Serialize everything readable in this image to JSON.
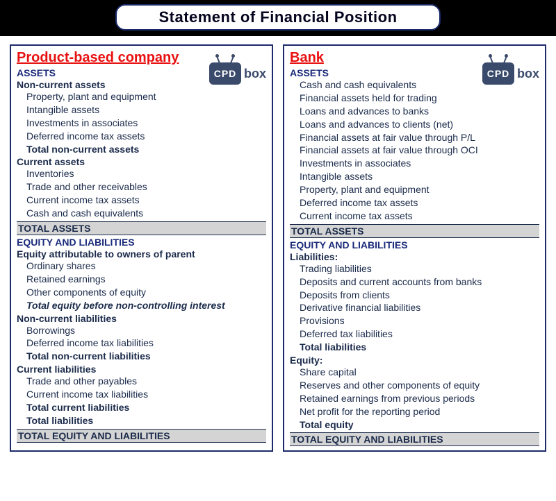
{
  "title": "Statement of Financial Position",
  "colors": {
    "title_border": "#1a2a6a",
    "panel_border": "#1a2a6a",
    "heading_red": "#e81010",
    "section_blue": "#1a2a7a",
    "text": "#1a2a4a",
    "total_bg": "#d4d4d4",
    "black_bar": "#000000",
    "white": "#ffffff",
    "logo": "#3a4a6a"
  },
  "logo": {
    "left": "CPD",
    "right": "box"
  },
  "left": {
    "title": "Product-based company",
    "assets_header": "ASSETS",
    "nca_header": "Non-current assets",
    "nca_items": [
      "Property, plant and equipment",
      "Intangible assets",
      "Investments in associates",
      "Deferred income tax assets"
    ],
    "nca_total": "Total non-current assets",
    "ca_header": "Current assets",
    "ca_items": [
      "Inventories",
      "Trade and other receivables",
      "Current income tax assets",
      "Cash and cash equivalents"
    ],
    "total_assets": "TOTAL ASSETS",
    "eql_header": "EQUITY AND LIABILITIES",
    "equity_header": "Equity attributable to owners of parent",
    "equity_items": [
      "Ordinary shares",
      "Retained earnings",
      "Other components of equity"
    ],
    "equity_total": "Total equity before non-controlling interest",
    "ncl_header": "Non-current liabilities",
    "ncl_items": [
      "Borrowings",
      "Deferred income tax liabilities"
    ],
    "ncl_total": "Total non-current liabilities",
    "cl_header": "Current liabilities",
    "cl_items": [
      "Trade and other payables",
      "Current income tax liabilities"
    ],
    "cl_total": "Total current liabilities",
    "liab_total": "Total liabilities",
    "total_eql": "TOTAL EQUITY AND LIABILITIES"
  },
  "right": {
    "title": "Bank",
    "assets_header": "ASSETS",
    "asset_items": [
      "Cash and cash equivalents",
      "Financial assets held for trading",
      "Loans and advances to banks",
      "Loans and advances to clients (net)",
      "Financial assets at fair value through P/L",
      "Financial assets at fair value through OCI",
      "Investments in associates",
      "Intangible assets",
      "Property, plant and equipment",
      "Deferred income tax assets",
      "Current income tax assets"
    ],
    "total_assets": "TOTAL ASSETS",
    "eql_header": "EQUITY AND LIABILITIES",
    "liab_header": "Liabilities:",
    "liab_items": [
      "Trading liabilities",
      "Deposits and current accounts from banks",
      "Deposits from clients",
      "Derivative financial liabilities",
      "Provisions",
      "Deferred tax liabilities"
    ],
    "liab_total": "Total liabilities",
    "equity_header": "Equity:",
    "equity_items": [
      "Share capital",
      "Reserves and other components of equity",
      "Retained earnings from previous periods",
      "Net profit for the reporting period"
    ],
    "equity_total": "Total equity",
    "total_eql": "TOTAL EQUITY AND LIABILITIES"
  }
}
